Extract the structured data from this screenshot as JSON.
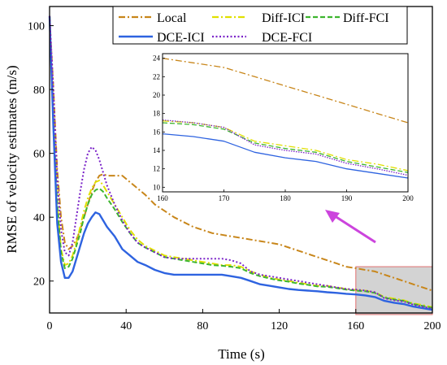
{
  "chart_data": {
    "type": "line",
    "xlabel": "Time (s)",
    "ylabel": "RMSE of velocity estimates (m/s)",
    "xlim": [
      0,
      200
    ],
    "ylim": [
      10,
      106
    ],
    "x_ticks": [
      "0",
      "40",
      "80",
      "120",
      "160",
      "200"
    ],
    "y_ticks": [
      "20",
      "40",
      "60",
      "80",
      "100"
    ],
    "grid": false,
    "legend_position": "top-right",
    "series": [
      {
        "name": "Local",
        "color": "#c8861a",
        "style": "dash-dot",
        "x": [
          0,
          2,
          4,
          6,
          8,
          10,
          12,
          14,
          16,
          18,
          20,
          22,
          24,
          26,
          28,
          30,
          34,
          38,
          42,
          46,
          50,
          55,
          60,
          65,
          70,
          75,
          80,
          85,
          90,
          95,
          100,
          105,
          110,
          115,
          120,
          125,
          130,
          135,
          140,
          145,
          150,
          155,
          160,
          165,
          170,
          175,
          180,
          185,
          190,
          195,
          200
        ],
        "y": [
          103,
          80,
          55,
          40,
          32,
          30,
          31,
          33,
          36,
          40,
          44,
          48,
          51,
          53,
          53.5,
          53,
          53,
          53,
          51,
          49,
          47,
          44,
          42,
          40,
          38.5,
          37,
          36,
          35,
          34.5,
          34,
          33.5,
          33,
          32.5,
          32,
          31.5,
          30.5,
          29.5,
          28.5,
          27.5,
          26.5,
          25.5,
          24.5,
          24,
          23.5,
          23,
          22,
          21,
          20,
          19,
          18,
          17
        ]
      },
      {
        "name": "Diff-ICI",
        "color": "#e0e000",
        "style": "dash-dot",
        "x": [
          0,
          2,
          4,
          6,
          8,
          10,
          12,
          14,
          16,
          18,
          20,
          22,
          24,
          26,
          28,
          30,
          34,
          38,
          42,
          46,
          50,
          55,
          60,
          65,
          70,
          75,
          80,
          85,
          90,
          95,
          100,
          105,
          110,
          115,
          120,
          125,
          130,
          135,
          140,
          145,
          150,
          155,
          160,
          165,
          170,
          175,
          180,
          185,
          190,
          195,
          200
        ],
        "y": [
          103,
          72,
          45,
          30,
          25,
          25.5,
          28,
          32,
          37,
          42,
          46,
          49,
          51,
          51.5,
          50,
          48,
          44,
          40,
          36,
          33,
          31,
          29.5,
          28,
          27.5,
          27,
          26.5,
          26,
          25.5,
          25,
          25,
          24.5,
          23,
          22,
          21,
          20.5,
          20,
          19.5,
          19,
          18.5,
          18.5,
          18,
          17.5,
          17.2,
          17,
          16.5,
          15,
          14.5,
          14,
          13,
          12.5,
          11.8
        ]
      },
      {
        "name": "Diff-FCI",
        "color": "#3db52f",
        "style": "dash",
        "x": [
          0,
          2,
          4,
          6,
          8,
          10,
          12,
          14,
          16,
          18,
          20,
          22,
          24,
          26,
          28,
          30,
          34,
          38,
          42,
          46,
          50,
          55,
          60,
          65,
          70,
          75,
          80,
          85,
          90,
          95,
          100,
          105,
          110,
          115,
          120,
          125,
          130,
          135,
          140,
          145,
          150,
          155,
          160,
          165,
          170,
          175,
          180,
          185,
          190,
          195,
          200
        ],
        "y": [
          103,
          71,
          44,
          29,
          24,
          24.5,
          27,
          31,
          35,
          40,
          44,
          47,
          48.5,
          49,
          48,
          46,
          42.5,
          38.5,
          35,
          32,
          30.5,
          29,
          27.5,
          27,
          26.5,
          26,
          25.5,
          25,
          24.8,
          24.5,
          24,
          22.5,
          21.5,
          20.8,
          20.2,
          19.8,
          19.2,
          18.8,
          18.3,
          18.2,
          17.8,
          17.3,
          17,
          16.8,
          16.3,
          14.8,
          14.2,
          13.8,
          12.8,
          12.2,
          11.6
        ]
      },
      {
        "name": "DCE-ICI",
        "color": "#2e63e0",
        "style": "solid",
        "x": [
          0,
          2,
          4,
          6,
          8,
          10,
          12,
          14,
          16,
          18,
          20,
          22,
          24,
          26,
          28,
          30,
          34,
          38,
          42,
          46,
          50,
          55,
          60,
          65,
          70,
          75,
          80,
          85,
          90,
          95,
          100,
          105,
          110,
          115,
          120,
          125,
          130,
          135,
          140,
          145,
          150,
          155,
          160,
          165,
          170,
          175,
          180,
          185,
          190,
          195,
          200
        ],
        "y": [
          103,
          68,
          38,
          26,
          21,
          21,
          23,
          27,
          31,
          35,
          38,
          40,
          41.5,
          41,
          39,
          37,
          34,
          30,
          28,
          26,
          25,
          23.5,
          22.5,
          22,
          22,
          22,
          22,
          22,
          22,
          21.5,
          21,
          20,
          19,
          18.5,
          18,
          17.5,
          17.2,
          17,
          16.8,
          16.5,
          16.3,
          16,
          15.8,
          15.5,
          15,
          13.8,
          13.2,
          12.8,
          12,
          11.5,
          11
        ]
      },
      {
        "name": "DCE-FCI",
        "color": "#7a22c8",
        "style": "dot",
        "x": [
          0,
          2,
          4,
          6,
          8,
          10,
          12,
          14,
          16,
          18,
          20,
          22,
          24,
          26,
          28,
          30,
          34,
          38,
          42,
          46,
          50,
          55,
          60,
          65,
          70,
          75,
          80,
          85,
          90,
          95,
          100,
          105,
          110,
          115,
          120,
          125,
          130,
          135,
          140,
          145,
          150,
          155,
          160,
          165,
          170,
          175,
          180,
          185,
          190,
          195,
          200
        ],
        "y": [
          103,
          80,
          52,
          36,
          29,
          28,
          32,
          40,
          48,
          55,
          60,
          62,
          61,
          58,
          54,
          50,
          44,
          39,
          35,
          32,
          30.5,
          29,
          27.5,
          27,
          27,
          27,
          27,
          27,
          27,
          26.5,
          25.5,
          23,
          22,
          21.5,
          21,
          20.5,
          20,
          19.5,
          19,
          18.5,
          18,
          17.5,
          17.3,
          17,
          16.5,
          14.6,
          14,
          13.6,
          12.6,
          12,
          11.3
        ]
      }
    ],
    "inset": {
      "xlim": [
        160,
        200
      ],
      "ylim": [
        9.5,
        24.5
      ],
      "x_ticks": [
        "160",
        "170",
        "180",
        "190",
        "200"
      ],
      "y_ticks": [
        "10",
        "12",
        "14",
        "16",
        "18",
        "20",
        "22",
        "24"
      ]
    }
  },
  "colors": {
    "arrow": "#cc44dd",
    "zoom_box_fill": "#d3d3d3",
    "zoom_box_stroke": "#e07070"
  }
}
